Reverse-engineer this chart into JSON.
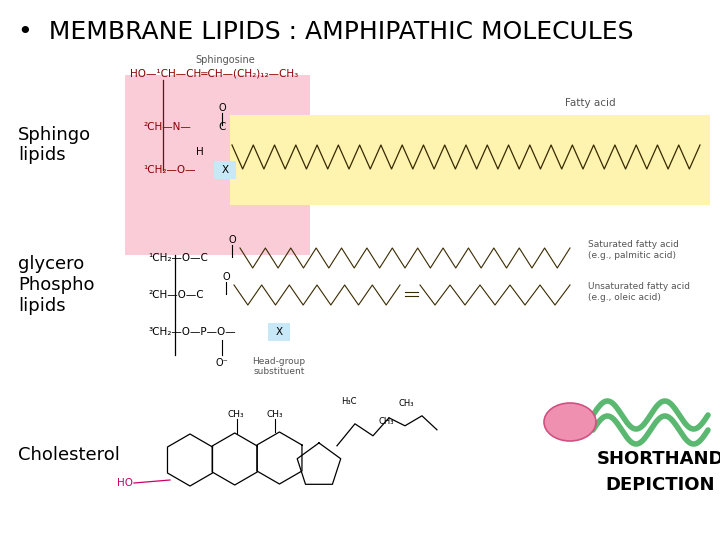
{
  "title_text": "•  MEMBRANE LIPIDS : AMPHIPATHIC MOLECULES",
  "title_fontsize": 18,
  "title_weight": "normal",
  "bg_color": "#ffffff",
  "labels": {
    "sphingo": "Sphingo\nlipids",
    "glycero": "glycero\nPhospho\nlipids",
    "cholesterol": "Cholesterol",
    "shorthand": "SHORTHAND\nDEPICTION"
  },
  "label_fontsize": 13,
  "shorthand_fontsize": 13,
  "pink_color": "#f9ccd8",
  "yellow_color": "#fff3b0",
  "blue_color": "#c8e8f8",
  "sphingosine_label": "Sphingosine",
  "fatty_acid_label": "Fatty acid",
  "saturated_label": "Saturated fatty acid\n(e.g., palmitic acid)",
  "unsaturated_label": "Unsaturated fatty acid\n(e.g., oleic acid)",
  "head_group_label": "Head-group\nsubstituent",
  "dark_red": "#8b0000",
  "chain_color": "#3a2a00",
  "label_color": "#555555"
}
